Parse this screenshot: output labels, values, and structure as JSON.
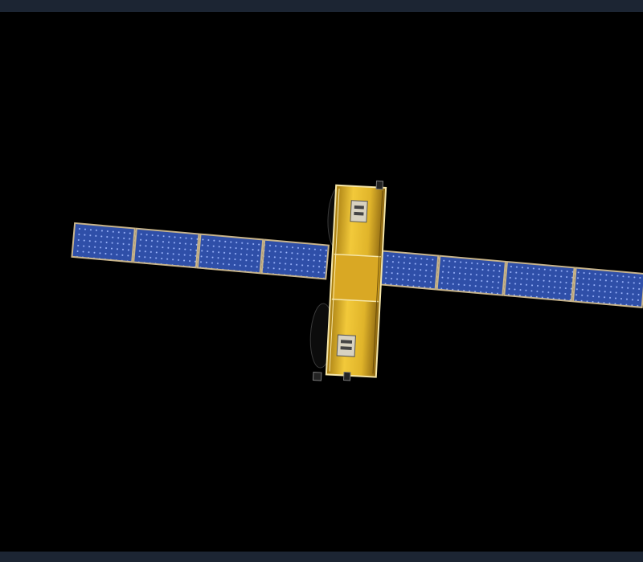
{
  "colors": {
    "background": "#000000",
    "frame_bar": "#1c2533",
    "solar_cell": "#2f4fa8",
    "solar_cell_light": "#5a7fd0",
    "panel_frame": "#c8b48a",
    "bus_gold": "#e0b42a",
    "bus_gold_dark": "#a67c12",
    "dish": "#0c0c0c"
  },
  "icons": {
    "subject": "satellite-icon"
  }
}
